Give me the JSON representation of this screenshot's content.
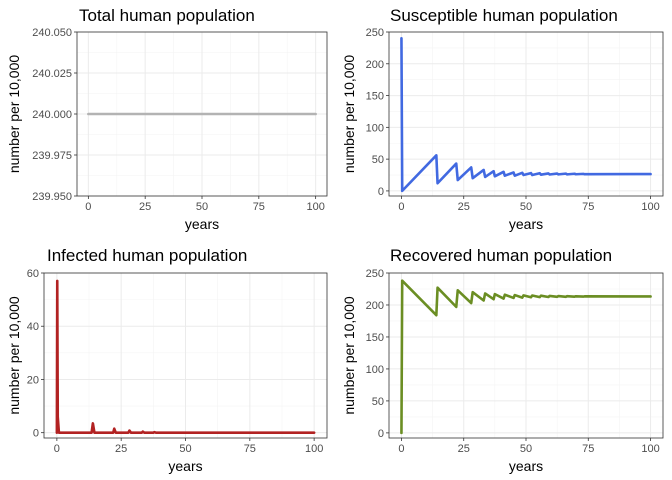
{
  "chart_data": [
    {
      "type": "line",
      "title": "Total human population",
      "xlabel": "years",
      "ylabel": "number per 10,000",
      "xlim": [
        -5,
        105
      ],
      "ylim": [
        239.95,
        240.05
      ],
      "xticks": [
        0,
        25,
        50,
        75,
        100
      ],
      "xtick_labels": [
        "0",
        "25",
        "50",
        "75",
        "100"
      ],
      "yticks": [
        239.95,
        239.975,
        240.0,
        240.025,
        240.05
      ],
      "ytick_labels": [
        "239.950",
        "239.975",
        "240.000",
        "240.025",
        "240.050"
      ],
      "grid": true,
      "color": "#b3b3b3",
      "series": [
        {
          "x": [
            0,
            100
          ],
          "y": [
            240,
            240
          ]
        }
      ]
    },
    {
      "type": "line",
      "title": "Susceptible human population",
      "xlabel": "years",
      "ylabel": "number per 10,000",
      "xlim": [
        -5,
        105
      ],
      "ylim": [
        -8,
        250
      ],
      "xticks": [
        0,
        25,
        50,
        75,
        100
      ],
      "xtick_labels": [
        "0",
        "25",
        "50",
        "75",
        "100"
      ],
      "yticks": [
        0,
        50,
        100,
        150,
        200,
        250
      ],
      "ytick_labels": [
        "0",
        "50",
        "100",
        "150",
        "200",
        "250"
      ],
      "grid": true,
      "color": "#4169e1",
      "series": [
        {
          "x": [
            0,
            0.3,
            14,
            14.5,
            22,
            22.6,
            28,
            28.6,
            33,
            33.6,
            37,
            37.5,
            41,
            41.5,
            45,
            45.5,
            48.5,
            49,
            52,
            52.5,
            55.5,
            56,
            59,
            59.5,
            62.5,
            63,
            66,
            66.5,
            69.5,
            70,
            73,
            73.5,
            100
          ],
          "y": [
            240,
            0,
            56,
            12,
            43,
            17,
            37,
            20,
            33,
            22,
            31,
            23,
            30,
            24,
            29,
            24,
            28.5,
            25,
            28,
            25,
            27.8,
            25.5,
            27.5,
            25.8,
            27.3,
            26,
            27.2,
            26,
            27,
            26.2,
            26.8,
            26.3,
            26.5
          ]
        }
      ]
    },
    {
      "type": "line",
      "title": "Infected human population",
      "xlabel": "years",
      "ylabel": "number per 10,000",
      "xlim": [
        -5,
        105
      ],
      "ylim": [
        -2,
        60
      ],
      "xticks": [
        0,
        25,
        50,
        75,
        100
      ],
      "xtick_labels": [
        "0",
        "25",
        "50",
        "75",
        "100"
      ],
      "yticks": [
        0,
        20,
        40,
        60
      ],
      "ytick_labels": [
        "0",
        "20",
        "40",
        "60"
      ],
      "grid": true,
      "color": "#b22222",
      "series": [
        {
          "x": [
            0,
            0.15,
            0.35,
            0.8,
            13.5,
            14,
            14.6,
            21.9,
            22.3,
            22.9,
            27.8,
            28.2,
            28.8,
            33,
            33.4,
            34,
            37.5,
            37.9,
            38.5,
            100
          ],
          "y": [
            0,
            57,
            6,
            0,
            0,
            3.5,
            0,
            0,
            1.5,
            0,
            0,
            0.8,
            0,
            0,
            0.4,
            0,
            0,
            0.2,
            0,
            0
          ]
        }
      ]
    },
    {
      "type": "line",
      "title": "Recovered human population",
      "xlabel": "years",
      "ylabel": "number per 10,000",
      "xlim": [
        -5,
        105
      ],
      "ylim": [
        -8,
        250
      ],
      "xticks": [
        0,
        25,
        50,
        75,
        100
      ],
      "xtick_labels": [
        "0",
        "25",
        "50",
        "75",
        "100"
      ],
      "yticks": [
        0,
        50,
        100,
        150,
        200,
        250
      ],
      "ytick_labels": [
        "0",
        "50",
        "100",
        "150",
        "200",
        "250"
      ],
      "grid": true,
      "color": "#6b8e23",
      "series": [
        {
          "x": [
            0,
            0.3,
            14,
            14.5,
            22,
            22.6,
            28,
            28.6,
            33,
            33.6,
            37,
            37.5,
            41,
            41.5,
            45,
            45.5,
            48.5,
            49,
            52,
            52.5,
            55.5,
            56,
            59,
            59.5,
            62.5,
            63,
            66,
            66.5,
            69.5,
            70,
            73,
            73.5,
            100
          ],
          "y": [
            0,
            238,
            184,
            227,
            197,
            223,
            203,
            220,
            207,
            218,
            209,
            217,
            210,
            216,
            211,
            215.5,
            211.5,
            215,
            212,
            214.8,
            212.3,
            214.5,
            212.5,
            214.2,
            212.7,
            214,
            212.8,
            213.8,
            213,
            213.6,
            213.1,
            213.5,
            213.3
          ]
        }
      ]
    }
  ]
}
